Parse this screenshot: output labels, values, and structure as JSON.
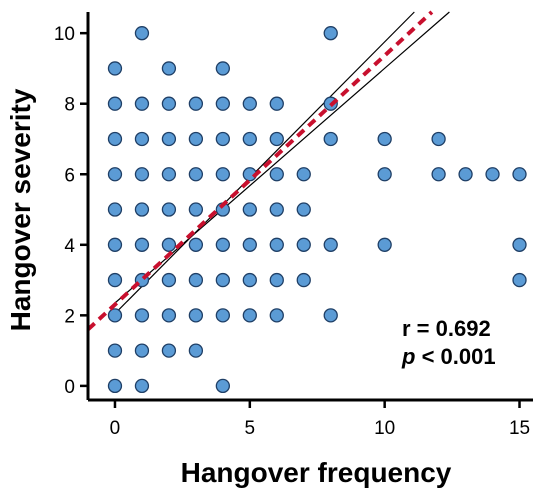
{
  "chart_data": {
    "type": "scatter",
    "xlabel": "Hangover frequency",
    "ylabel": "Hangover severity",
    "xlim": [
      -1,
      15.5
    ],
    "ylim": [
      -0.4,
      10.6
    ],
    "xticks": [
      0,
      5,
      10,
      15
    ],
    "yticks": [
      0,
      2,
      4,
      6,
      8,
      10
    ],
    "x_tick_labels": [
      "0",
      "5",
      "10",
      "15"
    ],
    "y_tick_labels": [
      "0",
      "2",
      "4",
      "6",
      "8",
      "10"
    ],
    "grid": false,
    "points": [
      [
        0,
        0
      ],
      [
        1,
        0
      ],
      [
        4,
        0
      ],
      [
        0,
        1
      ],
      [
        1,
        1
      ],
      [
        2,
        1
      ],
      [
        3,
        1
      ],
      [
        0,
        2
      ],
      [
        1,
        2
      ],
      [
        2,
        2
      ],
      [
        3,
        2
      ],
      [
        4,
        2
      ],
      [
        5,
        2
      ],
      [
        6,
        2
      ],
      [
        8,
        2
      ],
      [
        0,
        3
      ],
      [
        1,
        3
      ],
      [
        2,
        3
      ],
      [
        3,
        3
      ],
      [
        4,
        3
      ],
      [
        5,
        3
      ],
      [
        6,
        3
      ],
      [
        7,
        3
      ],
      [
        15,
        3
      ],
      [
        0,
        4
      ],
      [
        1,
        4
      ],
      [
        2,
        4
      ],
      [
        3,
        4
      ],
      [
        4,
        4
      ],
      [
        5,
        4
      ],
      [
        6,
        4
      ],
      [
        7,
        4
      ],
      [
        8,
        4
      ],
      [
        10,
        4
      ],
      [
        15,
        4
      ],
      [
        0,
        5
      ],
      [
        1,
        5
      ],
      [
        2,
        5
      ],
      [
        3,
        5
      ],
      [
        4,
        5
      ],
      [
        5,
        5
      ],
      [
        6,
        5
      ],
      [
        7,
        5
      ],
      [
        0,
        6
      ],
      [
        1,
        6
      ],
      [
        2,
        6
      ],
      [
        3,
        6
      ],
      [
        4,
        6
      ],
      [
        5,
        6
      ],
      [
        6,
        6
      ],
      [
        7,
        6
      ],
      [
        10,
        6
      ],
      [
        12,
        6
      ],
      [
        13,
        6
      ],
      [
        14,
        6
      ],
      [
        15,
        6
      ],
      [
        0,
        7
      ],
      [
        1,
        7
      ],
      [
        2,
        7
      ],
      [
        3,
        7
      ],
      [
        4,
        7
      ],
      [
        5,
        7
      ],
      [
        6,
        7
      ],
      [
        8,
        7
      ],
      [
        10,
        7
      ],
      [
        12,
        7
      ],
      [
        0,
        8
      ],
      [
        1,
        8
      ],
      [
        2,
        8
      ],
      [
        3,
        8
      ],
      [
        4,
        8
      ],
      [
        5,
        8
      ],
      [
        6,
        8
      ],
      [
        8,
        8
      ],
      [
        0,
        9
      ],
      [
        2,
        9
      ],
      [
        4,
        9
      ],
      [
        1,
        10
      ],
      [
        8,
        10
      ]
    ],
    "point_color": "#5b9bd5",
    "point_edge_color": "#1f3f66",
    "regression_line": {
      "x": [
        -1,
        11.75
      ],
      "y": [
        1.6,
        10.6
      ],
      "color": "#c8102e",
      "style": "dashed"
    },
    "confidence_band": {
      "upper": {
        "x": [
          0,
          11.1
        ],
        "y": [
          2.05,
          10.6
        ]
      },
      "lower": {
        "x": [
          0,
          12.4
        ],
        "y": [
          2.35,
          10.6
        ]
      },
      "color": "#000000"
    },
    "annotations": {
      "r_text": "r = 0.692",
      "p_symbol": "p",
      "p_rest": " < 0.001"
    }
  }
}
